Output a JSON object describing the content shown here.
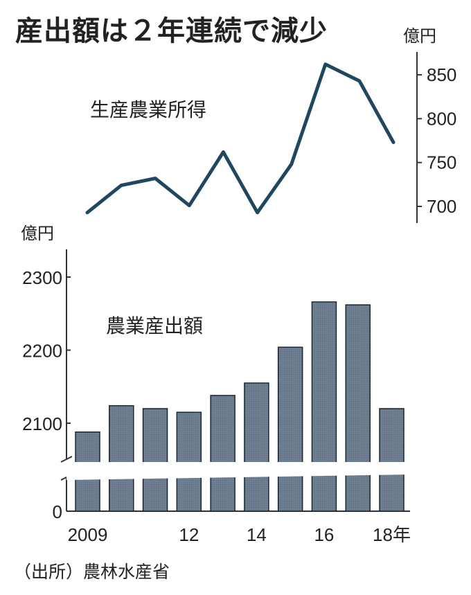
{
  "title": "産出額は２年連続で減少",
  "source": "（出所）農林水産省",
  "chart_data": [
    {
      "type": "line",
      "series": [
        {
          "name": "生産農業所得",
          "values": [
            693,
            724,
            732,
            701,
            762,
            693,
            748,
            862,
            843,
            773
          ]
        }
      ],
      "x": [
        2009,
        2010,
        2011,
        2012,
        2013,
        2014,
        2015,
        2016,
        2017,
        2018
      ],
      "y_unit": "億円",
      "yticks": [
        700,
        750,
        800,
        850
      ],
      "ylim": [
        680,
        880
      ],
      "line_color": "#1f4860"
    },
    {
      "type": "bar",
      "categories": [
        "2009",
        "2010",
        "2011",
        "2012",
        "2013",
        "2014",
        "2015",
        "2016",
        "2017",
        "2018"
      ],
      "xtick_labels": [
        "2009",
        "",
        "",
        "12",
        "",
        "14",
        "",
        "16",
        "",
        "18年"
      ],
      "series": [
        {
          "name": "農業産出額",
          "values": [
            2088,
            2124,
            2120,
            2115,
            2138,
            2155,
            2204,
            2266,
            2262,
            2120
          ]
        }
      ],
      "y_unit": "億円",
      "yticks": [
        0,
        2100,
        2200,
        2300
      ],
      "ylim_broken": [
        2050,
        2330
      ],
      "axis_break": true,
      "bar_color": "#6d7f91"
    }
  ]
}
